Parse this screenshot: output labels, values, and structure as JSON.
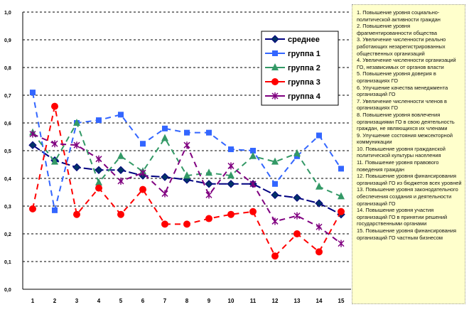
{
  "chart_data": {
    "type": "line",
    "title": "",
    "xlabel": "",
    "ylabel": "",
    "categories": [
      "1",
      "2",
      "3",
      "4",
      "5",
      "6",
      "7",
      "8",
      "9",
      "10",
      "11",
      "12",
      "13",
      "14",
      "15"
    ],
    "ylim": [
      0,
      1
    ],
    "yticks": [
      "0,0",
      "0,1",
      "0,2",
      "0,3",
      "0,4",
      "0,5",
      "0,6",
      "0,7",
      "0,8",
      "0,9",
      "1,0"
    ],
    "grid": true,
    "legend_placement": "top-right",
    "series": [
      {
        "name": "среднее",
        "color": "#000080",
        "marker": "diamond",
        "values": [
          0.52,
          0.465,
          0.44,
          0.43,
          0.43,
          0.41,
          0.405,
          0.395,
          0.38,
          0.38,
          0.38,
          0.34,
          0.33,
          0.31,
          0.27
        ]
      },
      {
        "name": "группа 1",
        "color": "#3366ff",
        "marker": "square",
        "values": [
          0.71,
          0.285,
          0.6,
          0.61,
          0.63,
          0.525,
          0.58,
          0.565,
          0.565,
          0.505,
          0.5,
          0.38,
          0.48,
          0.555,
          0.435
        ]
      },
      {
        "name": "группа 2",
        "color": "#339966",
        "marker": "triangle",
        "values": [
          0.565,
          0.46,
          0.6,
          0.385,
          0.48,
          0.425,
          0.545,
          0.41,
          0.42,
          0.41,
          0.48,
          0.46,
          0.49,
          0.37,
          0.335
        ]
      },
      {
        "name": "группа 3",
        "color": "#ff0000",
        "marker": "circle",
        "values": [
          0.29,
          0.66,
          0.27,
          0.365,
          0.27,
          0.36,
          0.235,
          0.235,
          0.255,
          0.27,
          0.28,
          0.12,
          0.2,
          0.135,
          0.28
        ]
      },
      {
        "name": "группа 4",
        "color": "#800080",
        "marker": "star",
        "values": [
          0.56,
          0.525,
          0.52,
          0.47,
          0.39,
          0.42,
          0.345,
          0.52,
          0.34,
          0.445,
          0.38,
          0.245,
          0.265,
          0.225,
          0.165
        ]
      }
    ]
  },
  "notes": [
    "1. Повышение уровня социально-политической активности граждан",
    "2. Повышение уровня фрагментированности общества",
    "3. Увеличение численности реально работающих незарегистрированных общественных организаций",
    "4. Увеличение численности организаций ГО, независимых от органов власти",
    "5. Повышение уровня доверия в организациях ГО",
    "6. Улучшение качества менеджмента организаций ГО",
    "7. Увеличение численности членов в организациях ГО",
    "8. Повышение уровня вовлечения организациями ГО в свою деятельность граждан, не являющихся их членами",
    "9. Улучшение состояния межсекторной коммуникации",
    "10. Повышение уровня гражданской политической культуры населения",
    "11. Повышение уровня правового поведения граждан",
    "12. Повышение уровня финансирования организаций ГО из бюджетов всех уровней",
    "13. Повышение уровня законодательного обеспечения создания и деятельности организаций ГО",
    "14. Повышение уровня участия организаций ГО в принятии решений государственными органами",
    "15. Повышение уровня финансирования организаций ГО частным бизнесом"
  ]
}
